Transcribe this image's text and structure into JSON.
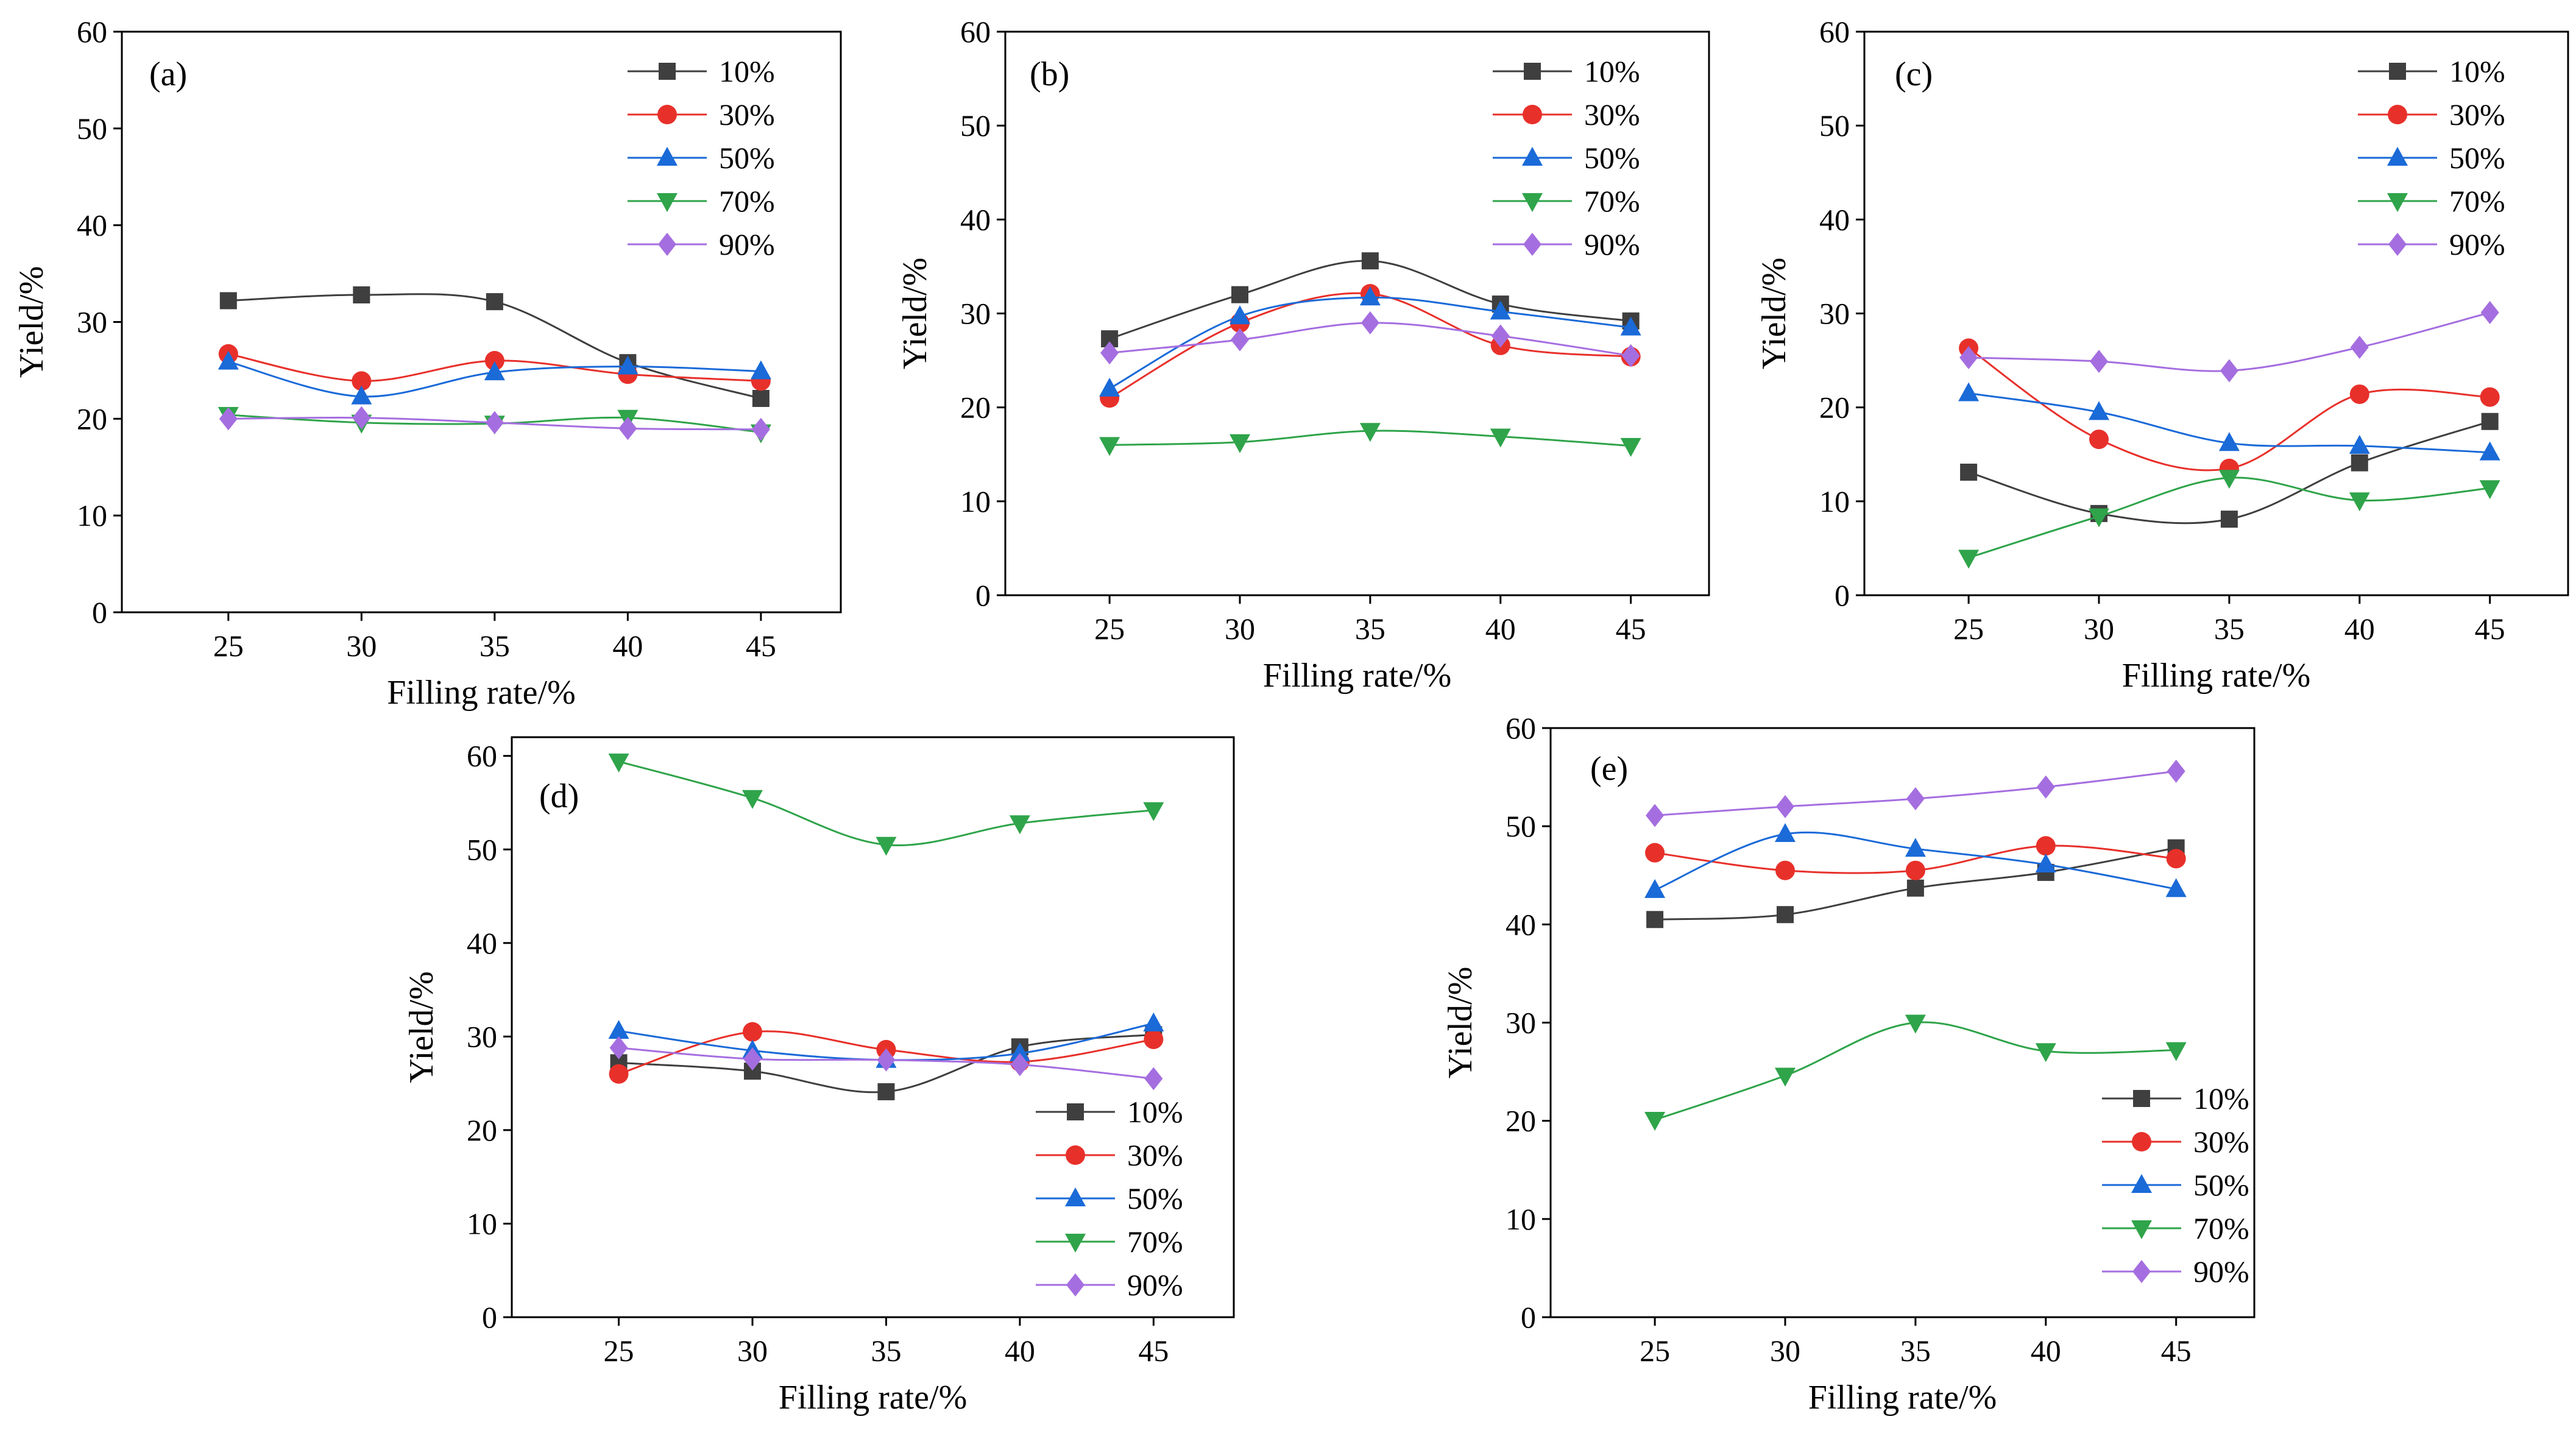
{
  "chart_data": [
    {
      "type": "line",
      "panel_label": "(a)",
      "xlabel": "Filling rate/%",
      "ylabel": "Yield/%",
      "categories": [
        "25",
        "30",
        "35",
        "40",
        "45"
      ],
      "x": [
        25,
        30,
        35,
        40,
        45
      ],
      "xlim": [
        21,
        48
      ],
      "ylim": [
        0,
        60
      ],
      "yticks": [
        "0",
        "10",
        "20",
        "30",
        "40",
        "50",
        "60"
      ],
      "legend_position": "top-right",
      "series": [
        {
          "name": "10%",
          "values": [
            32.2,
            32.8,
            32.1,
            25.8,
            22.1
          ]
        },
        {
          "name": "30%",
          "values": [
            26.7,
            23.9,
            26.0,
            24.6,
            23.9
          ]
        },
        {
          "name": "50%",
          "values": [
            25.9,
            22.3,
            24.8,
            25.4,
            24.9
          ]
        },
        {
          "name": "70%",
          "values": [
            20.4,
            19.6,
            19.5,
            20.1,
            18.6
          ]
        },
        {
          "name": "90%",
          "values": [
            20.0,
            20.1,
            19.6,
            19.0,
            18.9
          ]
        }
      ]
    },
    {
      "type": "line",
      "panel_label": "(b)",
      "xlabel": "Filling rate/%",
      "ylabel": "Yield/%",
      "categories": [
        "25",
        "30",
        "35",
        "40",
        "45"
      ],
      "x": [
        25,
        30,
        35,
        40,
        45
      ],
      "xlim": [
        21,
        48
      ],
      "ylim": [
        0,
        60
      ],
      "yticks": [
        "0",
        "10",
        "20",
        "30",
        "40",
        "50",
        "60"
      ],
      "legend_position": "top-right",
      "series": [
        {
          "name": "10%",
          "values": [
            27.3,
            32.0,
            35.6,
            31.0,
            29.2
          ]
        },
        {
          "name": "30%",
          "values": [
            21.0,
            29.0,
            32.1,
            26.6,
            25.4
          ]
        },
        {
          "name": "50%",
          "values": [
            22.0,
            29.7,
            31.7,
            30.2,
            28.5
          ]
        },
        {
          "name": "70%",
          "values": [
            16.0,
            16.3,
            17.5,
            16.9,
            15.9
          ]
        },
        {
          "name": "90%",
          "values": [
            25.8,
            27.2,
            29.0,
            27.6,
            25.5
          ]
        }
      ]
    },
    {
      "type": "line",
      "panel_label": "(c)",
      "xlabel": "Filling rate/%",
      "ylabel": "Yield/%",
      "categories": [
        "25",
        "30",
        "35",
        "40",
        "45"
      ],
      "x": [
        25,
        30,
        35,
        40,
        45
      ],
      "xlim": [
        21,
        48
      ],
      "ylim": [
        0,
        60
      ],
      "yticks": [
        "0",
        "10",
        "20",
        "30",
        "40",
        "50",
        "60"
      ],
      "legend_position": "top-right",
      "series": [
        {
          "name": "10%",
          "values": [
            13.1,
            8.7,
            8.1,
            14.1,
            18.5
          ]
        },
        {
          "name": "30%",
          "values": [
            26.3,
            16.6,
            13.5,
            21.4,
            21.1
          ]
        },
        {
          "name": "50%",
          "values": [
            21.5,
            19.5,
            16.2,
            15.9,
            15.2
          ]
        },
        {
          "name": "70%",
          "values": [
            4.0,
            8.4,
            12.5,
            10.1,
            11.4
          ]
        },
        {
          "name": "90%",
          "values": [
            25.3,
            24.9,
            23.9,
            26.4,
            30.1
          ]
        }
      ]
    },
    {
      "type": "line",
      "panel_label": "(d)",
      "xlabel": "Filling rate/%",
      "ylabel": "Yield/%",
      "categories": [
        "25",
        "30",
        "35",
        "40",
        "45"
      ],
      "x": [
        25,
        30,
        35,
        40,
        45
      ],
      "xlim": [
        21,
        48
      ],
      "ylim": [
        0,
        62
      ],
      "yticks": [
        "0",
        "10",
        "20",
        "30",
        "40",
        "50",
        "60"
      ],
      "legend_position": "bottom-right",
      "series": [
        {
          "name": "10%",
          "values": [
            27.2,
            26.3,
            24.1,
            28.9,
            30.2
          ]
        },
        {
          "name": "30%",
          "values": [
            26.0,
            30.5,
            28.6,
            27.3,
            29.7
          ]
        },
        {
          "name": "50%",
          "values": [
            30.6,
            28.5,
            27.5,
            28.2,
            31.4
          ]
        },
        {
          "name": "70%",
          "values": [
            59.4,
            55.5,
            50.5,
            52.8,
            54.2
          ]
        },
        {
          "name": "90%",
          "values": [
            28.8,
            27.6,
            27.5,
            27.0,
            25.5
          ]
        }
      ]
    },
    {
      "type": "line",
      "panel_label": "(e)",
      "xlabel": "Filling rate/%",
      "ylabel": "Yield/%",
      "categories": [
        "25",
        "30",
        "35",
        "40",
        "45"
      ],
      "x": [
        25,
        30,
        35,
        40,
        45
      ],
      "xlim": [
        21,
        48
      ],
      "ylim": [
        0,
        60
      ],
      "yticks": [
        "0",
        "10",
        "20",
        "30",
        "40",
        "50",
        "60"
      ],
      "legend_position": "bottom-right",
      "series": [
        {
          "name": "10%",
          "values": [
            40.5,
            41.0,
            43.7,
            45.3,
            47.8
          ]
        },
        {
          "name": "30%",
          "values": [
            47.3,
            45.5,
            45.5,
            48.0,
            46.7
          ]
        },
        {
          "name": "50%",
          "values": [
            43.5,
            49.2,
            47.7,
            46.1,
            43.6
          ]
        },
        {
          "name": "70%",
          "values": [
            20.1,
            24.6,
            30.0,
            27.1,
            27.2
          ]
        },
        {
          "name": "90%",
          "values": [
            51.1,
            52.0,
            52.8,
            54.0,
            55.6
          ]
        }
      ]
    }
  ],
  "series_style": [
    {
      "color": "#3f3f3f",
      "marker": "square"
    },
    {
      "color": "#e8302a",
      "marker": "circle"
    },
    {
      "color": "#1a6ad8",
      "marker": "triangle-up"
    },
    {
      "color": "#2fa44a",
      "marker": "triangle-down"
    },
    {
      "color": "#a56ee0",
      "marker": "diamond"
    }
  ]
}
